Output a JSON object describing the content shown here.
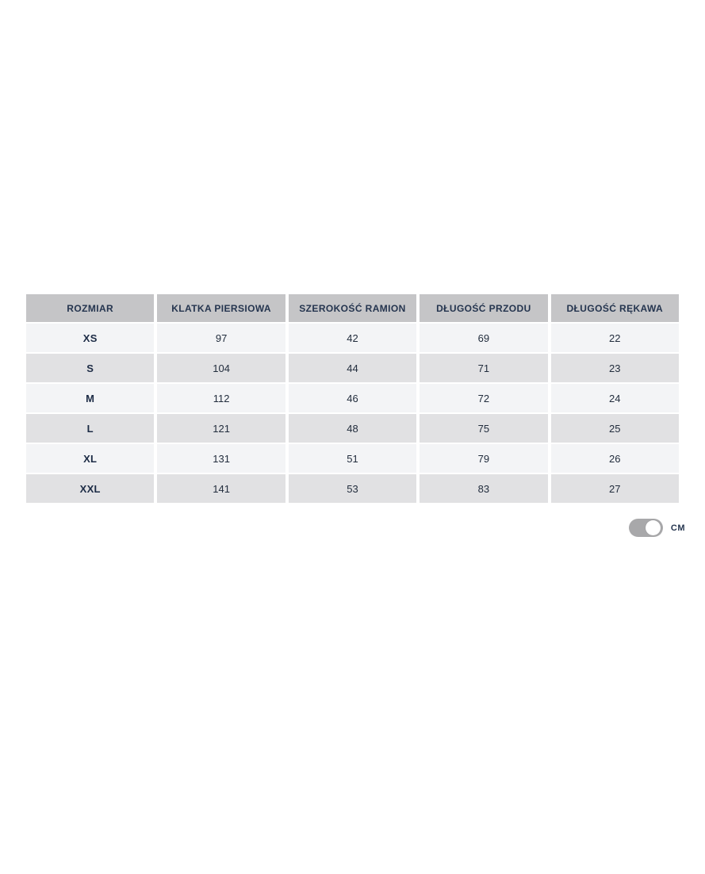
{
  "table": {
    "headers": [
      "ROZMIAR",
      "KLATKA PIERSIOWA",
      "SZEROKOŚĆ RAMION",
      "DŁUGOŚĆ PRZODU",
      "DŁUGOŚĆ RĘKAWA"
    ],
    "rows": [
      {
        "size": "XS",
        "values": [
          "97",
          "42",
          "69",
          "22"
        ]
      },
      {
        "size": "S",
        "values": [
          "104",
          "44",
          "71",
          "23"
        ]
      },
      {
        "size": "M",
        "values": [
          "112",
          "46",
          "72",
          "24"
        ]
      },
      {
        "size": "L",
        "values": [
          "121",
          "48",
          "75",
          "25"
        ]
      },
      {
        "size": "XL",
        "values": [
          "131",
          "51",
          "79",
          "26"
        ]
      },
      {
        "size": "XXL",
        "values": [
          "141",
          "53",
          "83",
          "27"
        ]
      }
    ]
  },
  "unit_toggle": {
    "label": "CM",
    "state": "on"
  },
  "colors": {
    "header_bg": "#c5c5c7",
    "row_light": "#f3f4f6",
    "row_dark": "#e1e1e3",
    "text": "#25354f",
    "toggle_track": "#a8a8aa",
    "toggle_knob": "#ffffff"
  }
}
